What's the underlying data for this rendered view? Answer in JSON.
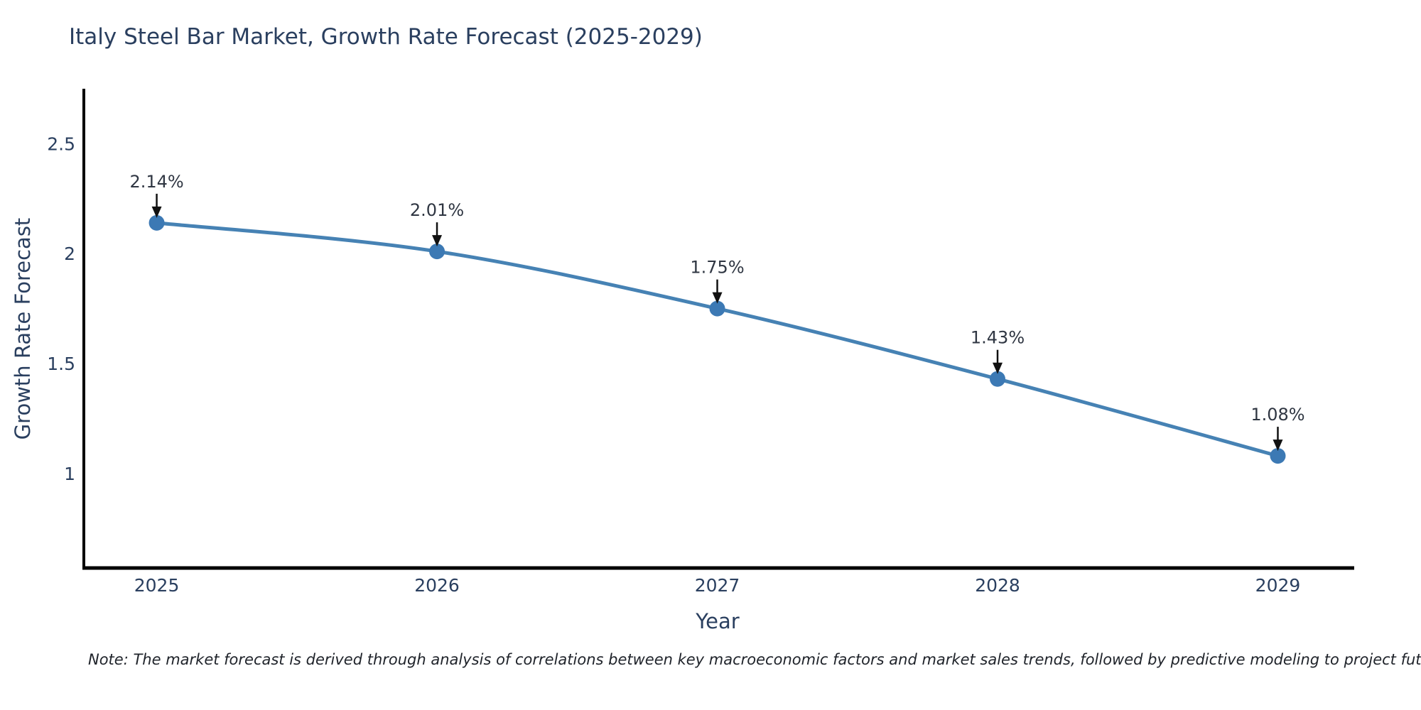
{
  "page": {
    "note": "Note: The market forecast is derived through analysis of correlations between key macroeconomic factors and market sales trends, followed by predictive modeling to project future sales"
  },
  "chart_data": {
    "type": "line",
    "title": "Italy Steel Bar Market, Growth Rate Forecast (2025-2029)",
    "xlabel": "Year",
    "ylabel": "Growth Rate Forecast",
    "x": [
      2025,
      2026,
      2027,
      2028,
      2029
    ],
    "values": [
      2.14,
      2.01,
      1.75,
      1.43,
      1.08
    ],
    "point_labels": [
      "2.14%",
      "2.01%",
      "1.75%",
      "1.43%",
      "1.08%"
    ],
    "x_tick_labels": [
      "2025",
      "2026",
      "2027",
      "2028",
      "2029"
    ],
    "y_ticks": [
      2.5,
      2,
      1.5,
      1
    ],
    "y_tick_labels": [
      "2.5",
      "2",
      "1.5",
      "1"
    ],
    "xlim": [
      2024.74,
      2029.27
    ],
    "ylim": [
      0.57,
      2.75
    ],
    "grid": false,
    "legend": "none",
    "line_shape": "spline",
    "colors": {
      "line": "#4682B4",
      "marker": "#3C79B4",
      "axis": "#000000",
      "tick_text": "#2a3f5f",
      "annotation_text": "#2f3642",
      "arrow": "#111111",
      "background": "#ffffff"
    }
  }
}
